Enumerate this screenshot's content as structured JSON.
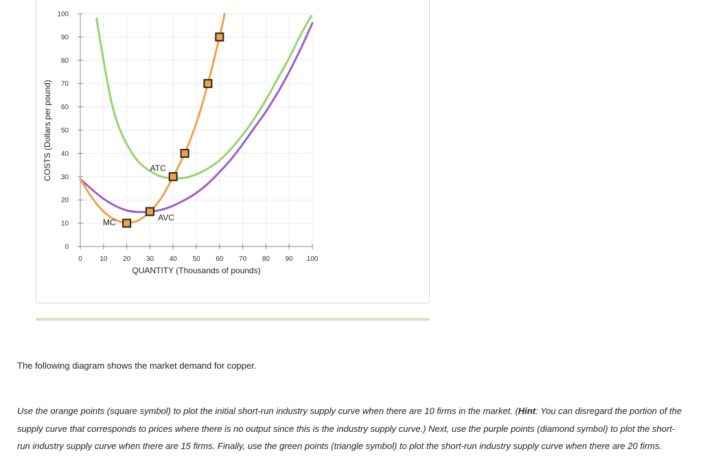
{
  "chart_data": {
    "type": "line",
    "xlabel": "QUANTITY (Thousands of pounds)",
    "ylabel": "COSTS (Dollars per pound)",
    "xlim": [
      0,
      100
    ],
    "ylim": [
      0,
      100
    ],
    "xticks": [
      0,
      10,
      20,
      30,
      40,
      50,
      60,
      70,
      80,
      90,
      100
    ],
    "yticks": [
      0,
      10,
      20,
      30,
      40,
      50,
      60,
      70,
      80,
      90,
      100
    ],
    "grid": true,
    "series": [
      {
        "name": "ATC",
        "color": "#98d36e",
        "points": [
          [
            7,
            98
          ],
          [
            10,
            80
          ],
          [
            13,
            64
          ],
          [
            16,
            53
          ],
          [
            20,
            44
          ],
          [
            25,
            36.5
          ],
          [
            30,
            32.5
          ],
          [
            35,
            30
          ],
          [
            40,
            29.3
          ],
          [
            45,
            29.5
          ],
          [
            50,
            31
          ],
          [
            55,
            33.5
          ],
          [
            60,
            37
          ],
          [
            65,
            42
          ],
          [
            70,
            48
          ],
          [
            75,
            55
          ],
          [
            80,
            63
          ],
          [
            85,
            72
          ],
          [
            90,
            81
          ],
          [
            95,
            91
          ],
          [
            99.5,
            99
          ]
        ]
      },
      {
        "name": "AVC",
        "color": "#9b5fce",
        "points": [
          [
            0,
            29
          ],
          [
            5,
            24.5
          ],
          [
            10,
            20.5
          ],
          [
            15,
            17.5
          ],
          [
            20,
            15.5
          ],
          [
            25,
            14.8
          ],
          [
            30,
            15
          ],
          [
            35,
            15.8
          ],
          [
            40,
            17.5
          ],
          [
            45,
            20
          ],
          [
            50,
            23
          ],
          [
            55,
            27
          ],
          [
            60,
            32
          ],
          [
            65,
            37.5
          ],
          [
            70,
            44
          ],
          [
            75,
            51
          ],
          [
            80,
            58
          ],
          [
            85,
            66
          ],
          [
            90,
            75
          ],
          [
            95,
            85
          ],
          [
            100,
            96
          ]
        ]
      },
      {
        "name": "MC",
        "color": "#f0a24a",
        "points": [
          [
            0,
            29
          ],
          [
            5,
            21
          ],
          [
            10,
            15
          ],
          [
            15,
            11.5
          ],
          [
            20,
            10.3
          ],
          [
            25,
            11.2
          ],
          [
            30,
            15
          ],
          [
            35,
            21
          ],
          [
            40,
            30
          ],
          [
            45,
            40
          ],
          [
            50,
            53
          ],
          [
            55,
            70
          ],
          [
            60,
            90
          ],
          [
            62.2,
            100
          ]
        ]
      }
    ],
    "markers": {
      "symbol": "square",
      "color": "#f0a24a",
      "points": [
        [
          20,
          10
        ],
        [
          30,
          15
        ],
        [
          40,
          30
        ],
        [
          45,
          40
        ],
        [
          55,
          70
        ],
        [
          60,
          90
        ]
      ]
    },
    "annotations": [
      {
        "text": "MC",
        "x": 12.5,
        "y": 9.2
      },
      {
        "text": "ATC",
        "x": 33.5,
        "y": 32.5
      },
      {
        "text": "AVC",
        "x": 37,
        "y": 11.2
      }
    ]
  },
  "text": {
    "intro": "The following diagram shows the market demand for copper.",
    "instr_1": "Use the orange points (square symbol) to plot the initial short-run industry supply curve when there are 10 firms in the market. (",
    "hint_label": "Hint",
    "instr_2": ": You can disregard the portion of the supply curve that corresponds to prices where there is no output since this is the industry supply curve.) Next, use the purple points (diamond symbol) to plot the short-run industry supply curve when there are 15 firms. Finally, use the green points (triangle symbol) to plot the short-run industry supply curve when there are 20 firms."
  }
}
